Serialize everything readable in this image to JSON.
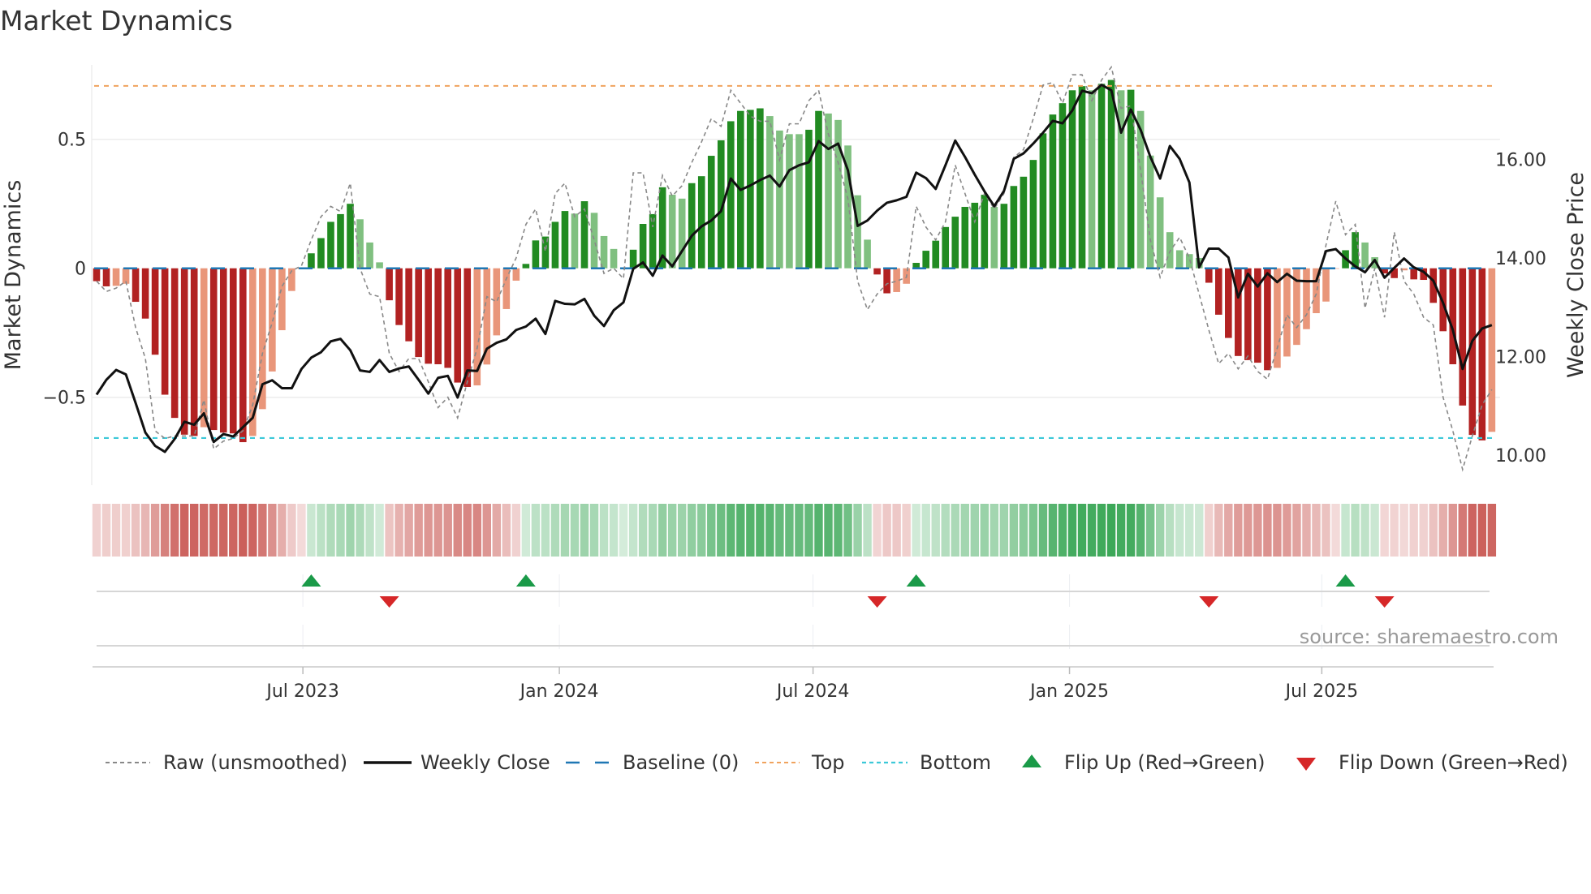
{
  "title": "Market Dynamics",
  "source": "source: sharemaestro.com",
  "colors": {
    "bar_green_strong": "#228b22",
    "bar_green_weak": "#80c080",
    "bar_red_strong": "#b22222",
    "bar_red_weak": "#e9967a",
    "raw": "#888888",
    "close": "#111111",
    "baseline": "#1f77b4",
    "top": "#f0a35e",
    "bottom": "#3cc8d8",
    "flip_up": "#1a9a48",
    "flip_down": "#d62728",
    "heat_green": "60,168,88",
    "heat_red": "200,85,80"
  },
  "legend": {
    "raw": "Raw (unsmoothed)",
    "close": "Weekly Close",
    "baseline": "Baseline (0)",
    "top": "Top",
    "bottom": "Bottom",
    "flip_up": "Flip Up (Red→Green)",
    "flip_down": "Flip Down (Green→Red)"
  },
  "chart_data": {
    "type": "bar",
    "title": "Market Dynamics",
    "ylabel": "Market Dynamics",
    "y2label": "Weekly Close Price",
    "frequency": "weekly",
    "start_date": "2023-02-03",
    "ylim": [
      -0.78,
      0.82
    ],
    "y2lim": [
      9.7,
      18.0
    ],
    "yticks": [
      {
        "v": 0.5,
        "label": "0.5"
      },
      {
        "v": 0,
        "label": "0"
      },
      {
        "v": -0.5,
        "label": "−0.5"
      }
    ],
    "y2ticks": [
      {
        "v": 16,
        "label": "16.00"
      },
      {
        "v": 14,
        "label": "14.00"
      },
      {
        "v": 12,
        "label": "12.00"
      },
      {
        "v": 10,
        "label": "10.00"
      }
    ],
    "xticks": [
      {
        "date": "2023-07-01",
        "label": "Jul 2023"
      },
      {
        "date": "2024-01-01",
        "label": "Jan 2024"
      },
      {
        "date": "2024-07-01",
        "label": "Jul 2024"
      },
      {
        "date": "2025-01-01",
        "label": "Jan 2025"
      },
      {
        "date": "2025-07-01",
        "label": "Jul 2025"
      }
    ],
    "top_level": 0.707,
    "bottom_level": -0.658,
    "baseline": 0,
    "smoothed": [
      -0.05,
      -0.07,
      -0.068,
      -0.06,
      -0.13,
      -0.195,
      -0.335,
      -0.49,
      -0.58,
      -0.645,
      -0.65,
      -0.616,
      -0.627,
      -0.637,
      -0.64,
      -0.674,
      -0.65,
      -0.546,
      -0.4,
      -0.24,
      -0.088,
      -0.003,
      0.058,
      0.117,
      0.18,
      0.21,
      0.25,
      0.19,
      0.1,
      0.023,
      -0.124,
      -0.22,
      -0.283,
      -0.344,
      -0.37,
      -0.372,
      -0.386,
      -0.443,
      -0.46,
      -0.454,
      -0.373,
      -0.26,
      -0.158,
      -0.048,
      0.017,
      0.108,
      0.123,
      0.18,
      0.222,
      0.212,
      0.26,
      0.215,
      0.125,
      0.075,
      0.002,
      0.072,
      0.172,
      0.21,
      0.314,
      0.285,
      0.27,
      0.33,
      0.357,
      0.436,
      0.496,
      0.57,
      0.61,
      0.614,
      0.62,
      0.59,
      0.534,
      0.52,
      0.52,
      0.537,
      0.61,
      0.6,
      0.575,
      0.476,
      0.283,
      0.111,
      -0.024,
      -0.097,
      -0.092,
      -0.06,
      0.021,
      0.068,
      0.107,
      0.16,
      0.2,
      0.238,
      0.254,
      0.285,
      0.238,
      0.25,
      0.319,
      0.355,
      0.42,
      0.523,
      0.596,
      0.64,
      0.69,
      0.706,
      0.69,
      0.715,
      0.73,
      0.69,
      0.692,
      0.61,
      0.437,
      0.275,
      0.14,
      0.07,
      0.055,
      0.04,
      -0.056,
      -0.18,
      -0.27,
      -0.34,
      -0.356,
      -0.366,
      -0.395,
      -0.386,
      -0.342,
      -0.297,
      -0.236,
      -0.174,
      -0.129,
      -0.002,
      0.07,
      0.14,
      0.1,
      0.043,
      -0.02,
      -0.038,
      -0.008,
      -0.043,
      -0.045,
      -0.134,
      -0.244,
      -0.372,
      -0.532,
      -0.646,
      -0.667,
      -0.634
    ],
    "raw": [
      -0.05,
      -0.09,
      -0.077,
      -0.05,
      -0.23,
      -0.35,
      -0.63,
      -0.66,
      -0.65,
      -0.65,
      -0.65,
      -0.51,
      -0.7,
      -0.67,
      -0.66,
      -0.63,
      -0.53,
      -0.33,
      -0.21,
      -0.07,
      -0.01,
      0.01,
      0.11,
      0.2,
      0.24,
      0.22,
      0.33,
      0.0,
      -0.1,
      -0.11,
      -0.33,
      -0.4,
      -0.35,
      -0.35,
      -0.44,
      -0.54,
      -0.5,
      -0.58,
      -0.44,
      -0.31,
      -0.11,
      -0.13,
      -0.04,
      0.04,
      0.17,
      0.23,
      0.065,
      0.29,
      0.33,
      0.2,
      0.23,
      0.11,
      -0.02,
      0.0,
      -0.04,
      0.37,
      0.37,
      0.16,
      0.36,
      0.28,
      0.32,
      0.41,
      0.49,
      0.58,
      0.55,
      0.69,
      0.64,
      0.59,
      0.57,
      0.57,
      0.42,
      0.56,
      0.56,
      0.65,
      0.69,
      0.52,
      0.41,
      0.27,
      -0.05,
      -0.16,
      -0.1,
      -0.06,
      -0.05,
      -0.035,
      0.24,
      0.16,
      0.11,
      0.18,
      0.4,
      0.29,
      0.18,
      0.29,
      0.23,
      0.29,
      0.43,
      0.46,
      0.58,
      0.71,
      0.72,
      0.64,
      0.75,
      0.75,
      0.65,
      0.73,
      0.78,
      0.62,
      0.63,
      0.38,
      0.11,
      -0.035,
      0.065,
      0.12,
      0.04,
      -0.1,
      -0.24,
      -0.37,
      -0.33,
      -0.39,
      -0.34,
      -0.4,
      -0.43,
      -0.31,
      -0.18,
      -0.23,
      -0.18,
      -0.1,
      0.09,
      0.26,
      0.13,
      0.17,
      -0.155,
      0.0,
      -0.19,
      0.14,
      -0.05,
      -0.1,
      -0.19,
      -0.22,
      -0.5,
      -0.63,
      -0.78,
      -0.65,
      -0.53,
      -0.47
    ],
    "close": [
      11.23,
      11.53,
      11.73,
      11.64,
      11.06,
      10.46,
      10.19,
      10.07,
      10.33,
      10.68,
      10.62,
      10.85,
      10.27,
      10.43,
      10.38,
      10.57,
      10.76,
      11.44,
      11.52,
      11.36,
      11.36,
      11.75,
      11.98,
      12.09,
      12.31,
      12.36,
      12.13,
      11.72,
      11.69,
      11.93,
      11.69,
      11.76,
      11.8,
      11.53,
      11.25,
      11.57,
      11.61,
      11.17,
      11.72,
      11.71,
      12.16,
      12.28,
      12.35,
      12.54,
      12.61,
      12.77,
      12.46,
      13.13,
      13.07,
      13.06,
      13.17,
      12.83,
      12.62,
      12.94,
      13.1,
      13.78,
      13.91,
      13.64,
      14.05,
      13.83,
      14.14,
      14.45,
      14.64,
      14.76,
      14.95,
      15.61,
      15.38,
      15.47,
      15.58,
      15.67,
      15.45,
      15.78,
      15.88,
      15.94,
      16.37,
      16.21,
      16.32,
      15.78,
      14.65,
      14.76,
      14.96,
      15.12,
      15.17,
      15.24,
      15.73,
      15.62,
      15.4,
      15.88,
      16.38,
      16.05,
      15.69,
      15.35,
      15.05,
      15.36,
      16.01,
      16.12,
      16.32,
      16.54,
      16.78,
      16.73,
      16.99,
      17.39,
      17.34,
      17.51,
      17.4,
      16.54,
      17.01,
      16.6,
      16.05,
      15.61,
      16.27,
      16.01,
      15.53,
      13.81,
      14.19,
      14.19,
      14.01,
      13.2,
      13.68,
      13.42,
      13.69,
      13.51,
      13.68,
      13.54,
      13.53,
      13.53,
      14.14,
      14.18,
      13.99,
      13.83,
      13.71,
      13.96,
      13.6,
      13.8,
      13.99,
      13.81,
      13.72,
      13.54,
      13.09,
      12.54,
      11.75,
      12.32,
      12.57,
      12.64
    ]
  }
}
